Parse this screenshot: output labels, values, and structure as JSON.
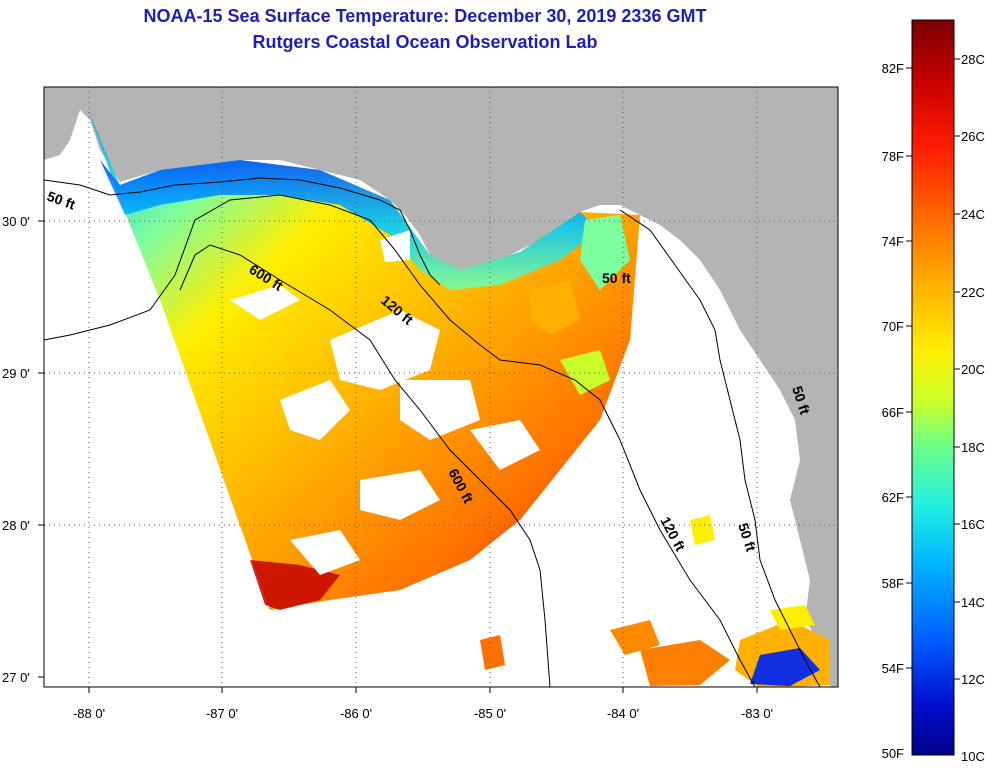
{
  "header": {
    "title": "NOAA-15 Sea Surface Temperature:  December 30, 2019 2336 GMT",
    "subtitle": "Rutgers Coastal Ocean Observation Lab"
  },
  "map": {
    "lat_labels": [
      "30 0'",
      "29 0'",
      "28 0'",
      "27 0'"
    ],
    "lon_labels": [
      "-88 0'",
      "-87 0'",
      "-86 0'",
      "-85 0'",
      "-84 0'",
      "-83 0'"
    ],
    "contour_labels": [
      "50 ft",
      "600 ft",
      "120 ft",
      "50 ft",
      "600 ft",
      "120 ft",
      "50 ft",
      "50 ft"
    ]
  },
  "colorbar": {
    "f_labels": [
      "82F",
      "78F",
      "74F",
      "70F",
      "66F",
      "62F",
      "58F",
      "54F",
      "50F"
    ],
    "c_labels": [
      "28C",
      "26C",
      "24C",
      "22C",
      "20C",
      "18C",
      "16C",
      "14C",
      "12C",
      "10C"
    ],
    "stops": [
      "#7a0000",
      "#c40000",
      "#ff1a00",
      "#ff6a00",
      "#ffb000",
      "#ffee00",
      "#c8ff2a",
      "#6bff88",
      "#22f0e0",
      "#00b4ff",
      "#0060ff",
      "#0010d0",
      "#00008a"
    ]
  },
  "colors": {
    "land": "#b4b4b4",
    "title": "#1f1fb0",
    "cloud": "#ffffff"
  }
}
